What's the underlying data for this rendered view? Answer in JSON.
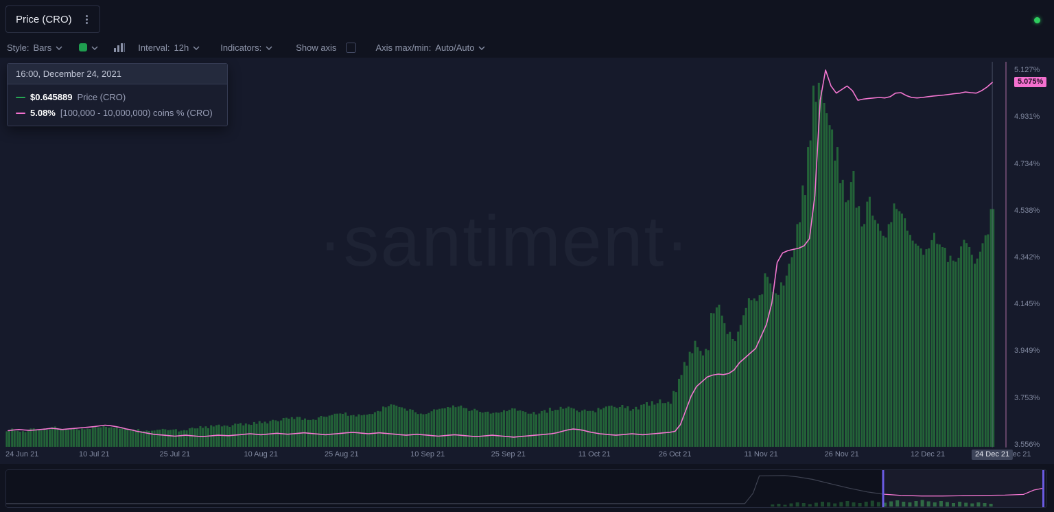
{
  "header": {
    "title": "Price (CRO)",
    "status_color": "#2ecc5e"
  },
  "toolbar": {
    "style_label": "Style:",
    "style_value": "Bars",
    "series_color_swatch": "#1f9d4f",
    "interval_label": "Interval:",
    "interval_value": "12h",
    "indicators_label": "Indicators:",
    "show_axis_label": "Show axis",
    "show_axis_checked": false,
    "axis_maxmin_label": "Axis max/min:",
    "axis_maxmin_value": "Auto/Auto"
  },
  "tooltip": {
    "datetime": "16:00, December 24, 2021",
    "rows": [
      {
        "swatch_color": "#26a653",
        "value": "$0.645889",
        "label": "Price (CRO)"
      },
      {
        "swatch_color": "#f470cf",
        "value": "5.08%",
        "label": "[100,000 - 10,000,000) coins % (CRO)"
      }
    ]
  },
  "chart": {
    "watermark": "·santiment·",
    "background": "#161a2b"
  },
  "chart_data": {
    "type": "combo",
    "x_start": "2021-06-24",
    "x_end": "2021-12-24",
    "x_unit": "day",
    "interval_displayed": "12h",
    "price_axis_est_range": [
      0.07,
      0.98
    ],
    "series": [
      {
        "name": "Price (CRO)",
        "type": "bar",
        "color": "#27743c",
        "unit": "USD",
        "values": [
          0.112,
          0.113,
          0.111,
          0.11,
          0.112,
          0.114,
          0.113,
          0.115,
          0.117,
          0.118,
          0.116,
          0.115,
          0.113,
          0.112,
          0.114,
          0.116,
          0.118,
          0.12,
          0.122,
          0.121,
          0.119,
          0.117,
          0.115,
          0.113,
          0.112,
          0.11,
          0.109,
          0.108,
          0.11,
          0.112,
          0.113,
          0.112,
          0.111,
          0.113,
          0.115,
          0.117,
          0.118,
          0.119,
          0.12,
          0.122,
          0.121,
          0.123,
          0.125,
          0.127,
          0.126,
          0.128,
          0.13,
          0.132,
          0.131,
          0.133,
          0.135,
          0.137,
          0.14,
          0.142,
          0.141,
          0.139,
          0.138,
          0.14,
          0.143,
          0.145,
          0.147,
          0.15,
          0.152,
          0.15,
          0.148,
          0.147,
          0.149,
          0.151,
          0.153,
          0.158,
          0.165,
          0.172,
          0.17,
          0.166,
          0.162,
          0.158,
          0.154,
          0.152,
          0.155,
          0.158,
          0.162,
          0.165,
          0.168,
          0.17,
          0.168,
          0.165,
          0.162,
          0.16,
          0.157,
          0.153,
          0.15,
          0.152,
          0.155,
          0.158,
          0.16,
          0.158,
          0.156,
          0.154,
          0.152,
          0.155,
          0.158,
          0.162,
          0.165,
          0.168,
          0.166,
          0.163,
          0.16,
          0.158,
          0.156,
          0.158,
          0.161,
          0.164,
          0.167,
          0.17,
          0.168,
          0.165,
          0.163,
          0.166,
          0.17,
          0.174,
          0.178,
          0.182,
          0.18,
          0.178,
          0.21,
          0.24,
          0.27,
          0.3,
          0.32,
          0.3,
          0.3,
          0.4,
          0.42,
          0.38,
          0.35,
          0.33,
          0.36,
          0.4,
          0.43,
          0.42,
          0.45,
          0.48,
          0.46,
          0.44,
          0.47,
          0.5,
          0.54,
          0.6,
          0.7,
          0.82,
          0.92,
          0.955,
          0.9,
          0.84,
          0.78,
          0.72,
          0.68,
          0.72,
          0.66,
          0.62,
          0.66,
          0.63,
          0.6,
          0.57,
          0.62,
          0.66,
          0.64,
          0.61,
          0.58,
          0.56,
          0.54,
          0.56,
          0.58,
          0.56,
          0.55,
          0.53,
          0.52,
          0.54,
          0.56,
          0.54,
          0.53,
          0.56,
          0.58,
          0.646
        ]
      },
      {
        "name": "[100,000 - 10,000,000) coins % (CRO)",
        "type": "line",
        "color": "#f577d2",
        "unit": "%",
        "values": [
          3.615,
          3.618,
          3.62,
          3.618,
          3.616,
          3.618,
          3.62,
          3.622,
          3.625,
          3.623,
          3.62,
          3.622,
          3.624,
          3.626,
          3.628,
          3.63,
          3.632,
          3.635,
          3.638,
          3.636,
          3.632,
          3.628,
          3.622,
          3.618,
          3.612,
          3.608,
          3.604,
          3.6,
          3.598,
          3.596,
          3.594,
          3.592,
          3.594,
          3.596,
          3.594,
          3.592,
          3.59,
          3.592,
          3.594,
          3.596,
          3.595,
          3.594,
          3.596,
          3.598,
          3.6,
          3.602,
          3.6,
          3.598,
          3.6,
          3.602,
          3.604,
          3.602,
          3.6,
          3.602,
          3.604,
          3.606,
          3.604,
          3.602,
          3.6,
          3.598,
          3.6,
          3.602,
          3.604,
          3.606,
          3.608,
          3.606,
          3.604,
          3.602,
          3.604,
          3.606,
          3.604,
          3.602,
          3.6,
          3.598,
          3.596,
          3.598,
          3.6,
          3.598,
          3.596,
          3.594,
          3.592,
          3.594,
          3.596,
          3.598,
          3.596,
          3.594,
          3.592,
          3.59,
          3.592,
          3.594,
          3.596,
          3.594,
          3.592,
          3.59,
          3.588,
          3.59,
          3.592,
          3.594,
          3.596,
          3.598,
          3.6,
          3.602,
          3.606,
          3.612,
          3.618,
          3.622,
          3.62,
          3.616,
          3.61,
          3.606,
          3.602,
          3.6,
          3.598,
          3.596,
          3.598,
          3.6,
          3.602,
          3.6,
          3.598,
          3.6,
          3.602,
          3.604,
          3.606,
          3.608,
          3.612,
          3.64,
          3.7,
          3.76,
          3.8,
          3.82,
          3.84,
          3.848,
          3.852,
          3.85,
          3.855,
          3.87,
          3.9,
          3.92,
          3.94,
          3.96,
          4.01,
          4.06,
          4.15,
          4.32,
          4.36,
          4.37,
          4.375,
          4.38,
          4.39,
          4.42,
          4.6,
          5.0,
          5.127,
          5.06,
          5.03,
          5.045,
          5.06,
          5.04,
          5.0,
          5.005,
          5.008,
          5.01,
          5.012,
          5.01,
          5.015,
          5.03,
          5.032,
          5.02,
          5.012,
          5.01,
          5.012,
          5.015,
          5.018,
          5.02,
          5.022,
          5.025,
          5.028,
          5.03,
          5.035,
          5.032,
          5.03,
          5.04,
          5.055,
          5.075
        ]
      }
    ],
    "y_right_axis": {
      "min": 3.556,
      "max": 5.127,
      "tick_labels": [
        "5.127%",
        "4.931%",
        "4.734%",
        "4.538%",
        "4.342%",
        "4.145%",
        "3.949%",
        "3.753%",
        "3.556%"
      ],
      "current_value": 5.075,
      "current_value_label": "5.075%",
      "current_value_color": "#f470cf"
    },
    "x_ticks": [
      {
        "label": "24 Jun 21",
        "day": 0
      },
      {
        "label": "10 Jul 21",
        "day": 16
      },
      {
        "label": "25 Jul 21",
        "day": 31
      },
      {
        "label": "10 Aug 21",
        "day": 47
      },
      {
        "label": "25 Aug 21",
        "day": 62
      },
      {
        "label": "10 Sep 21",
        "day": 78
      },
      {
        "label": "25 Sep 21",
        "day": 93
      },
      {
        "label": "11 Oct 21",
        "day": 109
      },
      {
        "label": "26 Oct 21",
        "day": 124
      },
      {
        "label": "11 Nov 21",
        "day": 140
      },
      {
        "label": "26 Nov 21",
        "day": 155
      },
      {
        "label": "12 Dec 21",
        "day": 171
      },
      {
        "label": "24 Dec 21",
        "day": 183,
        "highlighted": true
      },
      {
        "label": "26 Dec 21",
        "day": 187,
        "partial": true
      }
    ]
  },
  "navigator": {
    "selection_start": 0.843,
    "selection_end": 0.997,
    "line_color_unselected": "#9aa2b8",
    "line_color_selected": "#f577d2",
    "handle_color": "#6a5be2",
    "bars_color": "#2c7040",
    "line": [
      [
        0.0,
        0.07
      ],
      [
        0.71,
        0.07
      ],
      [
        0.718,
        0.4
      ],
      [
        0.724,
        0.95
      ],
      [
        0.748,
        0.96
      ],
      [
        0.76,
        0.92
      ],
      [
        0.775,
        0.84
      ],
      [
        0.79,
        0.72
      ],
      [
        0.81,
        0.56
      ],
      [
        0.828,
        0.44
      ],
      [
        0.843,
        0.37
      ],
      [
        0.86,
        0.33
      ],
      [
        0.88,
        0.31
      ],
      [
        0.9,
        0.31
      ],
      [
        0.92,
        0.32
      ],
      [
        0.94,
        0.33
      ],
      [
        0.96,
        0.34
      ],
      [
        0.978,
        0.36
      ],
      [
        0.988,
        0.5
      ],
      [
        0.997,
        0.56
      ]
    ],
    "bars_start": 0.735,
    "bars_step": 0.006,
    "bars": [
      0.06,
      0.08,
      0.05,
      0.09,
      0.12,
      0.1,
      0.07,
      0.11,
      0.14,
      0.12,
      0.09,
      0.13,
      0.16,
      0.12,
      0.1,
      0.14,
      0.17,
      0.13,
      0.11,
      0.15,
      0.18,
      0.14,
      0.12,
      0.16,
      0.19,
      0.15,
      0.12,
      0.16,
      0.13,
      0.1,
      0.14,
      0.11,
      0.09,
      0.12,
      0.1,
      0.08
    ]
  }
}
